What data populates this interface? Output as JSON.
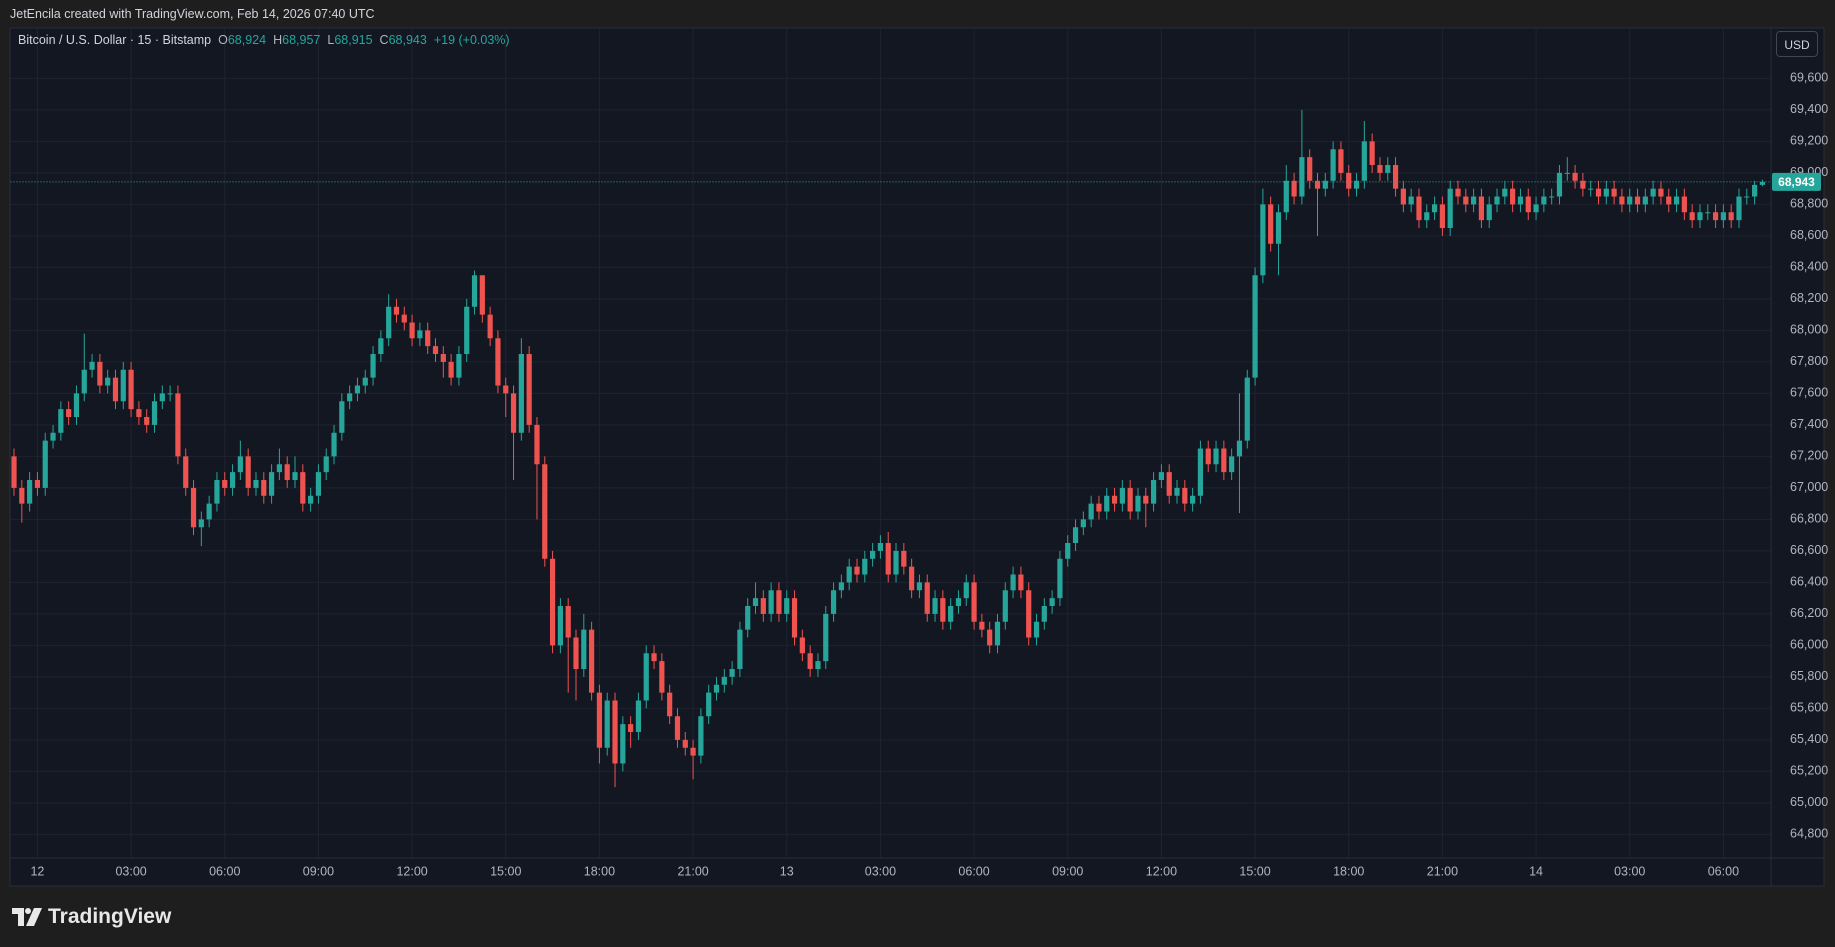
{
  "top_bar": {
    "text": "JetEncila created with TradingView.com, Feb 14, 2026 07:40 UTC"
  },
  "footer": {
    "logo_text": "TradingView"
  },
  "chart_data": {
    "type": "candlestick",
    "title": "Bitcoin / U.S. Dollar · 15 · Bitstamp",
    "ohlc_legend": [
      {
        "key": "O",
        "value": "68,924"
      },
      {
        "key": "H",
        "value": "68,957"
      },
      {
        "key": "L",
        "value": "68,915"
      },
      {
        "key": "C",
        "value": "68,943"
      }
    ],
    "change": "+19 (+0.03%)",
    "currency": "USD",
    "open": [
      67200,
      67000,
      66900,
      67050,
      67000,
      67300,
      67350,
      67500,
      67450,
      67600,
      67750,
      67800,
      67650,
      67700,
      67550,
      67750,
      67500,
      67450,
      67400,
      67550,
      67600,
      67600,
      67200,
      67000,
      66750,
      66800,
      66900,
      67050,
      67000,
      67100,
      67200,
      67000,
      67050,
      66950,
      67100,
      67150,
      67050,
      67100,
      66900,
      66950,
      67100,
      67200,
      67350,
      67550,
      67600,
      67650,
      67700,
      67850,
      67950,
      68150,
      68100,
      68050,
      67950,
      68000,
      67900,
      67850,
      67800,
      67700,
      67850,
      68150,
      68350,
      68100,
      67950,
      67650,
      67600,
      67350,
      67850,
      67400,
      67150,
      66550,
      66000,
      66250,
      66050,
      65850,
      66100,
      65700,
      65350,
      65650,
      65250,
      65500,
      65450,
      65650,
      65950,
      65900,
      65700,
      65550,
      65400,
      65350,
      65300,
      65550,
      65700,
      65750,
      65800,
      65850,
      66100,
      66250,
      66300,
      66200,
      66350,
      66200,
      66300,
      66050,
      65950,
      65850,
      65900,
      66200,
      66350,
      66400,
      66500,
      66450,
      66550,
      66600,
      66650,
      66450,
      66600,
      66500,
      66350,
      66400,
      66200,
      66300,
      66150,
      66250,
      66300,
      66400,
      66150,
      66100,
      66000,
      66150,
      66350,
      66450,
      66350,
      66050,
      66150,
      66250,
      66300,
      66550,
      66650,
      66750,
      66800,
      66900,
      66850,
      66950,
      66900,
      67000,
      66850,
      66950,
      66900,
      67050,
      67100,
      66950,
      67000,
      66900,
      66950,
      67250,
      67150,
      67250,
      67100,
      67200,
      67300,
      67700,
      68350,
      68800,
      68550,
      68750,
      68950,
      68850,
      69100,
      68950,
      68900,
      68950,
      69150,
      69000,
      68900,
      68950,
      69200,
      69050,
      69000,
      69050,
      68900,
      68800,
      68850,
      68700,
      68750,
      68800,
      68650,
      68900,
      68850,
      68800,
      68850,
      68700,
      68800,
      68850,
      68900,
      68800,
      68850,
      68750,
      68800,
      68850,
      68850,
      69000,
      69000,
      68950,
      68900,
      68900,
      68850,
      68900,
      68850,
      68800,
      68850,
      68800,
      68850,
      68900,
      68850,
      68800,
      68850,
      68750,
      68700,
      68750,
      68750,
      68700,
      68750,
      68700,
      68850,
      68850,
      68924
    ],
    "high": [
      67250,
      67050,
      67100,
      67100,
      67350,
      67400,
      67550,
      67550,
      67650,
      67980,
      67850,
      67850,
      67750,
      67750,
      67800,
      67800,
      67550,
      67500,
      67600,
      67650,
      67650,
      67650,
      67250,
      67050,
      66850,
      66950,
      67100,
      67100,
      67150,
      67300,
      67250,
      67100,
      67100,
      67150,
      67250,
      67200,
      67200,
      67150,
      67000,
      67150,
      67250,
      67400,
      67600,
      67650,
      67700,
      67750,
      67900,
      68000,
      68230,
      68200,
      68150,
      68100,
      68050,
      68050,
      67950,
      67900,
      67850,
      67900,
      68200,
      68380,
      68350,
      68150,
      68000,
      67700,
      67650,
      67950,
      67900,
      67450,
      67200,
      66600,
      66300,
      66300,
      66100,
      66200,
      66150,
      65750,
      65700,
      65700,
      65550,
      65550,
      65700,
      66000,
      66000,
      65950,
      65750,
      65600,
      65450,
      65400,
      65600,
      65750,
      65800,
      65850,
      65900,
      66150,
      66300,
      66400,
      66350,
      66400,
      66400,
      66350,
      66350,
      66100,
      66000,
      65950,
      66250,
      66400,
      66450,
      66550,
      66550,
      66600,
      66650,
      66700,
      66720,
      66650,
      66650,
      66550,
      66450,
      66450,
      66350,
      66350,
      66300,
      66350,
      66450,
      66450,
      66200,
      66150,
      66200,
      66400,
      66500,
      66500,
      66400,
      66200,
      66300,
      66350,
      66600,
      66700,
      66800,
      66850,
      66950,
      66950,
      67000,
      67000,
      67050,
      67050,
      67000,
      67000,
      67100,
      67150,
      67150,
      67050,
      67050,
      67000,
      67300,
      67300,
      67300,
      67300,
      67250,
      67600,
      67750,
      68400,
      68900,
      68850,
      68800,
      69050,
      69000,
      69400,
      69150,
      69000,
      69000,
      69200,
      69200,
      69050,
      69000,
      69330,
      69250,
      69100,
      69100,
      69100,
      68950,
      68900,
      68900,
      68800,
      68850,
      68850,
      68950,
      68950,
      68900,
      68900,
      68900,
      68850,
      68900,
      68950,
      68950,
      68900,
      68900,
      68850,
      68900,
      68900,
      69050,
      69100,
      69050,
      69000,
      68950,
      68950,
      68950,
      68950,
      68900,
      68900,
      68900,
      68900,
      68950,
      68950,
      68900,
      68900,
      68900,
      68800,
      68800,
      68800,
      68800,
      68800,
      68800,
      68900,
      68900,
      68950,
      68957
    ],
    "low": [
      66950,
      66780,
      66850,
      66950,
      66950,
      67250,
      67300,
      67400,
      67400,
      67550,
      67700,
      67600,
      67600,
      67500,
      67500,
      67450,
      67400,
      67350,
      67350,
      67500,
      67550,
      67150,
      66950,
      66700,
      66630,
      66750,
      66850,
      66950,
      66950,
      67050,
      66950,
      66950,
      66900,
      66900,
      67050,
      67000,
      67000,
      66850,
      66850,
      66900,
      67050,
      67150,
      67300,
      67500,
      67550,
      67600,
      67650,
      67800,
      67900,
      68050,
      68000,
      67900,
      67900,
      67850,
      67800,
      67700,
      67650,
      67650,
      67800,
      68100,
      68050,
      67900,
      67600,
      67450,
      67050,
      67300,
      67350,
      66800,
      66500,
      65950,
      65950,
      65700,
      65650,
      65800,
      65650,
      65250,
      65300,
      65100,
      65200,
      65350,
      65400,
      65600,
      65850,
      65650,
      65500,
      65350,
      65300,
      65150,
      65250,
      65500,
      65650,
      65700,
      65750,
      65800,
      66050,
      66200,
      66150,
      66150,
      66150,
      66150,
      66000,
      65900,
      65800,
      65800,
      65850,
      66150,
      66300,
      66350,
      66400,
      66400,
      66500,
      66550,
      66400,
      66400,
      66450,
      66300,
      66300,
      66150,
      66150,
      66100,
      66100,
      66200,
      66250,
      66100,
      66050,
      65950,
      65950,
      66100,
      66300,
      66300,
      66000,
      66000,
      66100,
      66200,
      66250,
      66500,
      66600,
      66700,
      66750,
      66800,
      66800,
      66850,
      66850,
      66800,
      66800,
      66750,
      66850,
      67000,
      66900,
      66900,
      66850,
      66850,
      66900,
      67100,
      67100,
      67050,
      67050,
      66840,
      67250,
      67650,
      68300,
      68500,
      68350,
      68700,
      68800,
      68800,
      68900,
      68600,
      68850,
      68900,
      68950,
      68850,
      68850,
      68900,
      69000,
      68950,
      68950,
      68850,
      68750,
      68750,
      68650,
      68650,
      68700,
      68600,
      68600,
      68800,
      68750,
      68750,
      68650,
      68650,
      68750,
      68800,
      68750,
      68750,
      68700,
      68700,
      68750,
      68800,
      68800,
      68950,
      68900,
      68850,
      68850,
      68800,
      68800,
      68800,
      68750,
      68750,
      68750,
      68750,
      68800,
      68800,
      68750,
      68750,
      68700,
      68650,
      68650,
      68700,
      68650,
      68650,
      68650,
      68650,
      68800,
      68800,
      68915
    ],
    "close": [
      67000,
      66900,
      67050,
      67000,
      67300,
      67350,
      67500,
      67450,
      67600,
      67750,
      67800,
      67650,
      67700,
      67550,
      67750,
      67500,
      67450,
      67400,
      67550,
      67600,
      67600,
      67200,
      67000,
      66750,
      66800,
      66900,
      67050,
      67000,
      67100,
      67200,
      67000,
      67050,
      66950,
      67100,
      67150,
      67050,
      67100,
      66900,
      66950,
      67100,
      67200,
      67350,
      67550,
      67600,
      67650,
      67700,
      67850,
      67950,
      68150,
      68100,
      68050,
      67950,
      68000,
      67900,
      67850,
      67800,
      67700,
      67850,
      68150,
      68350,
      68100,
      67950,
      67650,
      67600,
      67350,
      67850,
      67400,
      67150,
      66550,
      66000,
      66250,
      66050,
      65850,
      66100,
      65700,
      65350,
      65650,
      65250,
      65500,
      65450,
      65650,
      65950,
      65900,
      65700,
      65550,
      65400,
      65350,
      65300,
      65550,
      65700,
      65750,
      65800,
      65850,
      66100,
      66250,
      66300,
      66200,
      66350,
      66200,
      66300,
      66050,
      65950,
      65850,
      65900,
      66200,
      66350,
      66400,
      66500,
      66450,
      66550,
      66600,
      66650,
      66450,
      66600,
      66500,
      66350,
      66400,
      66200,
      66300,
      66150,
      66250,
      66300,
      66400,
      66150,
      66100,
      66000,
      66150,
      66350,
      66450,
      66350,
      66050,
      66150,
      66250,
      66300,
      66550,
      66650,
      66750,
      66800,
      66900,
      66850,
      66950,
      66900,
      67000,
      66850,
      66950,
      66900,
      67050,
      67100,
      66950,
      67000,
      66900,
      66950,
      67250,
      67150,
      67250,
      67100,
      67200,
      67300,
      67700,
      68350,
      68800,
      68550,
      68750,
      68950,
      68850,
      69100,
      68950,
      68900,
      68950,
      69150,
      69000,
      68900,
      68950,
      69200,
      69050,
      69000,
      69050,
      68900,
      68800,
      68850,
      68700,
      68750,
      68800,
      68650,
      68900,
      68850,
      68800,
      68850,
      68700,
      68800,
      68850,
      68900,
      68800,
      68850,
      68750,
      68800,
      68850,
      68850,
      69000,
      69000,
      68950,
      68900,
      68900,
      68850,
      68900,
      68850,
      68800,
      68850,
      68800,
      68850,
      68900,
      68850,
      68800,
      68850,
      68750,
      68700,
      68750,
      68750,
      68700,
      68750,
      68700,
      68850,
      68850,
      68924,
      68943
    ],
    "up_color": "#26a69a",
    "down_color": "#ef5350",
    "xlim": [
      -0.45,
      225.1
    ],
    "xticks": [
      {
        "value": 3,
        "label": "12"
      },
      {
        "value": 15,
        "label": "03:00"
      },
      {
        "value": 27,
        "label": "06:00"
      },
      {
        "value": 39,
        "label": "09:00"
      },
      {
        "value": 51,
        "label": "12:00"
      },
      {
        "value": 63,
        "label": "15:00"
      },
      {
        "value": 75,
        "label": "18:00"
      },
      {
        "value": 87,
        "label": "21:00"
      },
      {
        "value": 99,
        "label": "13"
      },
      {
        "value": 111,
        "label": "03:00"
      },
      {
        "value": 123,
        "label": "06:00"
      },
      {
        "value": 135,
        "label": "09:00"
      },
      {
        "value": 147,
        "label": "12:00"
      },
      {
        "value": 159,
        "label": "15:00"
      },
      {
        "value": 171,
        "label": "18:00"
      },
      {
        "value": 183,
        "label": "21:00"
      },
      {
        "value": 195,
        "label": "14"
      },
      {
        "value": 207,
        "label": "03:00"
      },
      {
        "value": 219,
        "label": "06:00"
      }
    ],
    "ylim": [
      64650,
      69920
    ],
    "yticks": [
      {
        "value": 64800,
        "label": "64,800"
      },
      {
        "value": 65000,
        "label": "65,000"
      },
      {
        "value": 65200,
        "label": "65,200"
      },
      {
        "value": 65400,
        "label": "65,400"
      },
      {
        "value": 65600,
        "label": "65,600"
      },
      {
        "value": 65800,
        "label": "65,800"
      },
      {
        "value": 66000,
        "label": "66,000"
      },
      {
        "value": 66200,
        "label": "66,200"
      },
      {
        "value": 66400,
        "label": "66,400"
      },
      {
        "value": 66600,
        "label": "66,600"
      },
      {
        "value": 66800,
        "label": "66,800"
      },
      {
        "value": 67000,
        "label": "67,000"
      },
      {
        "value": 67200,
        "label": "67,200"
      },
      {
        "value": 67400,
        "label": "67,400"
      },
      {
        "value": 67600,
        "label": "67,600"
      },
      {
        "value": 67800,
        "label": "67,800"
      },
      {
        "value": 68000,
        "label": "68,000"
      },
      {
        "value": 68200,
        "label": "68,200"
      },
      {
        "value": 68400,
        "label": "68,400"
      },
      {
        "value": 68600,
        "label": "68,600"
      },
      {
        "value": 68800,
        "label": "68,800"
      },
      {
        "value": 69000,
        "label": "69,000"
      },
      {
        "value": 69200,
        "label": "69,200"
      },
      {
        "value": 69400,
        "label": "69,400"
      },
      {
        "value": 69600,
        "label": "69,600"
      }
    ],
    "last_price": {
      "value": 68943,
      "label": "68,943"
    },
    "grid": true
  }
}
